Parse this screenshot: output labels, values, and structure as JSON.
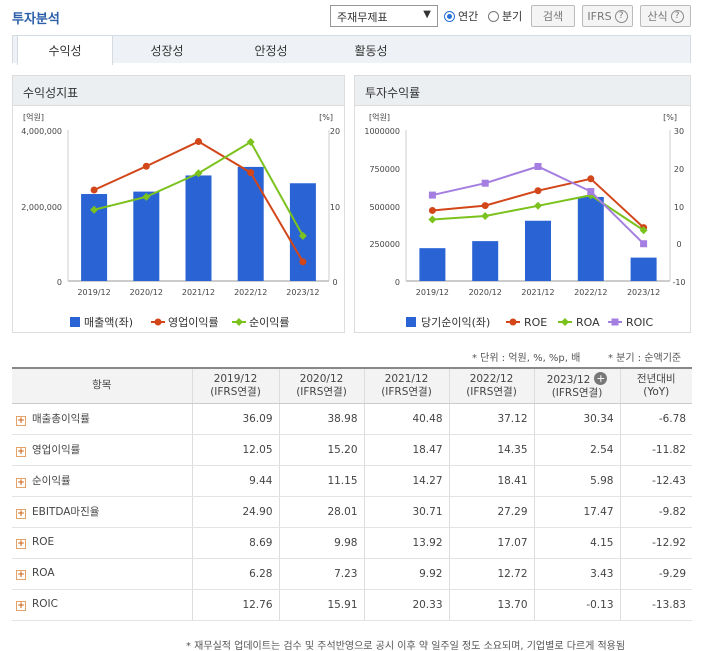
{
  "header": {
    "title": "투자분석",
    "select_value": "주재무제표",
    "radio_annual": "연간",
    "radio_quarter": "분기",
    "search_label": "검색",
    "ifrs_label": "IFRS",
    "formula_label": "산식",
    "help_glyph": "?"
  },
  "tabs": [
    "수익성",
    "성장성",
    "안정성",
    "활동성"
  ],
  "panel_left": {
    "title": "수익성지표",
    "unit_left": "[억원]",
    "unit_right": "[%]",
    "y_left_ticks": [
      "4,000,000",
      "2,000,000",
      "0"
    ],
    "y_right_ticks": [
      "20",
      "10",
      "0"
    ],
    "legend": [
      "매출액(좌)",
      "영업이익률",
      "순이익률"
    ]
  },
  "panel_right": {
    "title": "투자수익률",
    "unit_left": "[억원]",
    "unit_right": "[%]",
    "y_left_ticks": [
      "1000000",
      "750000",
      "500000",
      "250000",
      "0"
    ],
    "y_right_ticks": [
      "30",
      "20",
      "10",
      "0",
      "-10"
    ],
    "legend": [
      "당기순이익(좌)",
      "ROE",
      "ROA",
      "ROIC"
    ]
  },
  "chart_data": [
    {
      "type": "bar",
      "title": "수익성지표",
      "categories": [
        "2019/12",
        "2020/12",
        "2021/12",
        "2022/12",
        "2023/12"
      ],
      "ylim_left": [
        0,
        4000000
      ],
      "ylim_right": [
        0,
        20
      ],
      "series": [
        {
          "name": "매출액(좌)",
          "kind": "bar",
          "axis": "left",
          "color": "#2a63d4",
          "values": [
            2304009,
            2368070,
            2796048,
            3022314,
            2589355
          ]
        },
        {
          "name": "영업이익률",
          "kind": "line",
          "axis": "right",
          "color": "#d24619",
          "values": [
            12.05,
            15.2,
            18.47,
            14.35,
            2.54
          ]
        },
        {
          "name": "순이익률",
          "kind": "line",
          "axis": "right",
          "color": "#7cc21e",
          "values": [
            9.44,
            11.15,
            14.27,
            18.41,
            5.98
          ]
        }
      ]
    },
    {
      "type": "bar",
      "title": "투자수익률",
      "categories": [
        "2019/12",
        "2020/12",
        "2021/12",
        "2022/12",
        "2023/12"
      ],
      "ylim_left": [
        0,
        1000000
      ],
      "ylim_right": [
        -10,
        30
      ],
      "series": [
        {
          "name": "당기순이익(좌)",
          "kind": "bar",
          "axis": "left",
          "color": "#2a63d4",
          "values": [
            217389,
            264078,
            399074,
            556541,
            154871
          ]
        },
        {
          "name": "ROE",
          "kind": "line",
          "axis": "right",
          "color": "#d24619",
          "values": [
            8.69,
            9.98,
            13.92,
            17.07,
            4.15
          ]
        },
        {
          "name": "ROA",
          "kind": "line",
          "axis": "right",
          "color": "#7cc21e",
          "values": [
            6.28,
            7.23,
            9.92,
            12.72,
            3.43
          ]
        },
        {
          "name": "ROIC",
          "kind": "line",
          "axis": "right",
          "color": "#a47ee0",
          "values": [
            12.76,
            15.91,
            20.33,
            13.7,
            -0.13
          ]
        }
      ]
    }
  ],
  "notes": {
    "unit": "* 단위 : 억원, %, %p, 배",
    "quarter": "* 분기 : 순액기준"
  },
  "table": {
    "header_item": "항목",
    "columns": [
      {
        "period": "2019/12",
        "basis": "(IFRS연결)"
      },
      {
        "period": "2020/12",
        "basis": "(IFRS연결)"
      },
      {
        "period": "2021/12",
        "basis": "(IFRS연결)"
      },
      {
        "period": "2022/12",
        "basis": "(IFRS연결)"
      },
      {
        "period": "2023/12",
        "basis": "(IFRS연결)"
      }
    ],
    "yoy_line1": "전년대비",
    "yoy_line2": "(YoY)",
    "expand_glyph": "+",
    "add_glyph": "+",
    "rows": [
      {
        "label": "매출총이익률",
        "values": [
          "36.09",
          "38.98",
          "40.48",
          "37.12",
          "30.34"
        ],
        "yoy": "-6.78"
      },
      {
        "label": "영업이익률",
        "values": [
          "12.05",
          "15.20",
          "18.47",
          "14.35",
          "2.54"
        ],
        "yoy": "-11.82"
      },
      {
        "label": "순이익률",
        "values": [
          "9.44",
          "11.15",
          "14.27",
          "18.41",
          "5.98"
        ],
        "yoy": "-12.43"
      },
      {
        "label": "EBITDA마진율",
        "values": [
          "24.90",
          "28.01",
          "30.71",
          "27.29",
          "17.47"
        ],
        "yoy": "-9.82"
      },
      {
        "label": "ROE",
        "values": [
          "8.69",
          "9.98",
          "13.92",
          "17.07",
          "4.15"
        ],
        "yoy": "-12.92"
      },
      {
        "label": "ROA",
        "values": [
          "6.28",
          "7.23",
          "9.92",
          "12.72",
          "3.43"
        ],
        "yoy": "-9.29"
      },
      {
        "label": "ROIC",
        "values": [
          "12.76",
          "15.91",
          "20.33",
          "13.70",
          "-0.13"
        ],
        "yoy": "-13.83"
      }
    ]
  },
  "footer": "* 재무실적 업데이트는 검수 및 주석반영으로 공시 이후 약 일주일 정도 소요되며, 기업별로 다르게 적용됨"
}
